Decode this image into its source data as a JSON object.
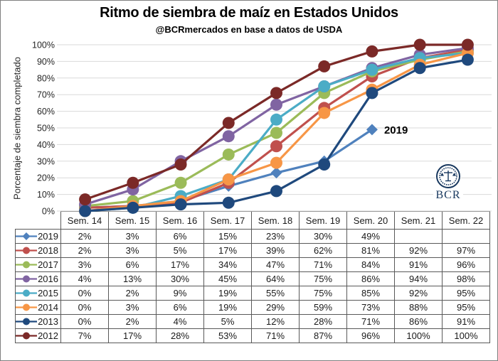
{
  "title": "Ritmo de siembra de maíz en Estados Unidos",
  "subtitle": "@BCRmercados en base a datos de USDA",
  "annotation": {
    "label": "2019"
  },
  "logo": {
    "text": "BCR"
  },
  "colors": {
    "grid": "#D9D9D9",
    "axis_text": "#262626",
    "table_border": "#595959",
    "annotation_text": "#000000",
    "logo_navy": "#17375E"
  },
  "chart_data": {
    "type": "line",
    "title": "Ritmo de siembra de maíz en Estados Unidos",
    "subtitle": "@BCRmercados en base a datos de USDA",
    "xlabel": "",
    "ylabel": "Porcentaje de siembra completado",
    "ylim": [
      0,
      100
    ],
    "ytick_step": 10,
    "ytick_suffix": "%",
    "grid": true,
    "legend_position": "table-left-column",
    "categories": [
      "Sem. 14",
      "Sem. 15",
      "Sem. 16",
      "Sem. 17",
      "Sem. 18",
      "Sem. 19",
      "Sem. 20",
      "Sem. 21",
      "Sem. 22"
    ],
    "series": [
      {
        "name": "2019",
        "color": "#4F81BD",
        "marker": "diamond",
        "values": [
          2,
          3,
          6,
          15,
          23,
          30,
          49,
          null,
          null
        ]
      },
      {
        "name": "2018",
        "color": "#C0504D",
        "marker": "circle",
        "values": [
          2,
          3,
          5,
          17,
          39,
          62,
          81,
          92,
          97
        ]
      },
      {
        "name": "2017",
        "color": "#9BBB59",
        "marker": "circle",
        "values": [
          3,
          6,
          17,
          34,
          47,
          71,
          84,
          91,
          96
        ]
      },
      {
        "name": "2016",
        "color": "#8064A2",
        "marker": "circle",
        "values": [
          4,
          13,
          30,
          45,
          64,
          75,
          86,
          94,
          98
        ]
      },
      {
        "name": "2015",
        "color": "#4BACC6",
        "marker": "circle",
        "values": [
          0,
          2,
          9,
          19,
          55,
          75,
          85,
          92,
          95
        ]
      },
      {
        "name": "2014",
        "color": "#F79646",
        "marker": "circle",
        "values": [
          0,
          3,
          6,
          19,
          29,
          59,
          73,
          88,
          95
        ]
      },
      {
        "name": "2013",
        "color": "#1F497D",
        "marker": "circle",
        "values": [
          0,
          2,
          4,
          5,
          12,
          28,
          71,
          86,
          91
        ]
      },
      {
        "name": "2012",
        "color": "#7B2927",
        "marker": "circle",
        "values": [
          7,
          17,
          28,
          53,
          71,
          87,
          96,
          100,
          100
        ]
      }
    ]
  },
  "table": {
    "header": [
      "Sem. 14",
      "Sem. 15",
      "Sem. 16",
      "Sem. 17",
      "Sem. 18",
      "Sem. 19",
      "Sem. 20",
      "Sem. 21",
      "Sem. 22"
    ],
    "rows": [
      {
        "year": "2019",
        "cells": [
          "2%",
          "3%",
          "6%",
          "15%",
          "23%",
          "30%",
          "49%",
          "",
          ""
        ]
      },
      {
        "year": "2018",
        "cells": [
          "2%",
          "3%",
          "5%",
          "17%",
          "39%",
          "62%",
          "81%",
          "92%",
          "97%"
        ]
      },
      {
        "year": "2017",
        "cells": [
          "3%",
          "6%",
          "17%",
          "34%",
          "47%",
          "71%",
          "84%",
          "91%",
          "96%"
        ]
      },
      {
        "year": "2016",
        "cells": [
          "4%",
          "13%",
          "30%",
          "45%",
          "64%",
          "75%",
          "86%",
          "94%",
          "98%"
        ]
      },
      {
        "year": "2015",
        "cells": [
          "0%",
          "2%",
          "9%",
          "19%",
          "55%",
          "75%",
          "85%",
          "92%",
          "95%"
        ]
      },
      {
        "year": "2014",
        "cells": [
          "0%",
          "3%",
          "6%",
          "19%",
          "29%",
          "59%",
          "73%",
          "88%",
          "95%"
        ]
      },
      {
        "year": "2013",
        "cells": [
          "0%",
          "2%",
          "4%",
          "5%",
          "12%",
          "28%",
          "71%",
          "86%",
          "91%"
        ]
      },
      {
        "year": "2012",
        "cells": [
          "7%",
          "17%",
          "28%",
          "53%",
          "71%",
          "87%",
          "96%",
          "100%",
          "100%"
        ]
      }
    ]
  }
}
